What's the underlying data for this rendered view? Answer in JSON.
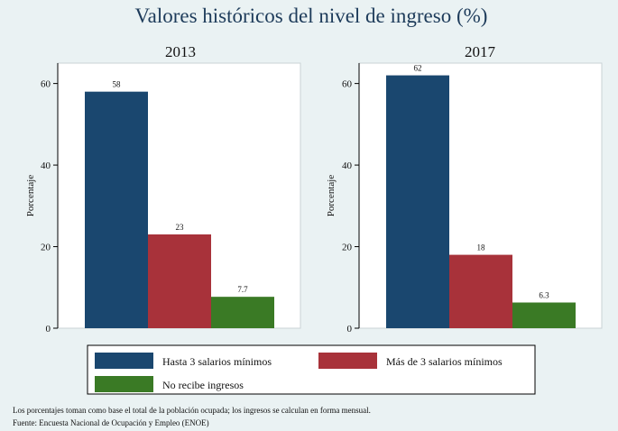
{
  "chart_data": {
    "type": "bar",
    "title": "Valores históricos del nivel de ingreso (%)",
    "ylabel": "Porcentaje",
    "ylim": [
      0,
      65
    ],
    "yticks": [
      0,
      20,
      40,
      60
    ],
    "ytick_labels": [
      "0",
      "20",
      "40",
      "60"
    ],
    "series_names": [
      "Hasta 3 salarios mínimos",
      "Más de 3 salarios mínimos",
      "No recibe ingresos"
    ],
    "series_colors": [
      "#1a476f",
      "#a8323a",
      "#3a7a25"
    ],
    "panels": [
      {
        "title": "2013",
        "values": [
          58,
          23,
          7.7
        ],
        "labels": [
          "58",
          "23",
          "7.7"
        ]
      },
      {
        "title": "2017",
        "values": [
          62,
          18,
          6.3
        ],
        "labels": [
          "62",
          "18",
          "6.3"
        ]
      }
    ],
    "legend": {
      "placement": "bottom",
      "entries": [
        "Hasta 3 salarios mínimos",
        "Más de 3 salarios mínimos",
        "No recibe ingresos"
      ]
    }
  },
  "notes": {
    "line1": "Los porcentajes toman como base el total de la población ocupada; los ingresos se calculan en forma mensual.",
    "line2": "Fuente: Encuesta Nacional de Ocupación y Empleo (ENOE)"
  }
}
